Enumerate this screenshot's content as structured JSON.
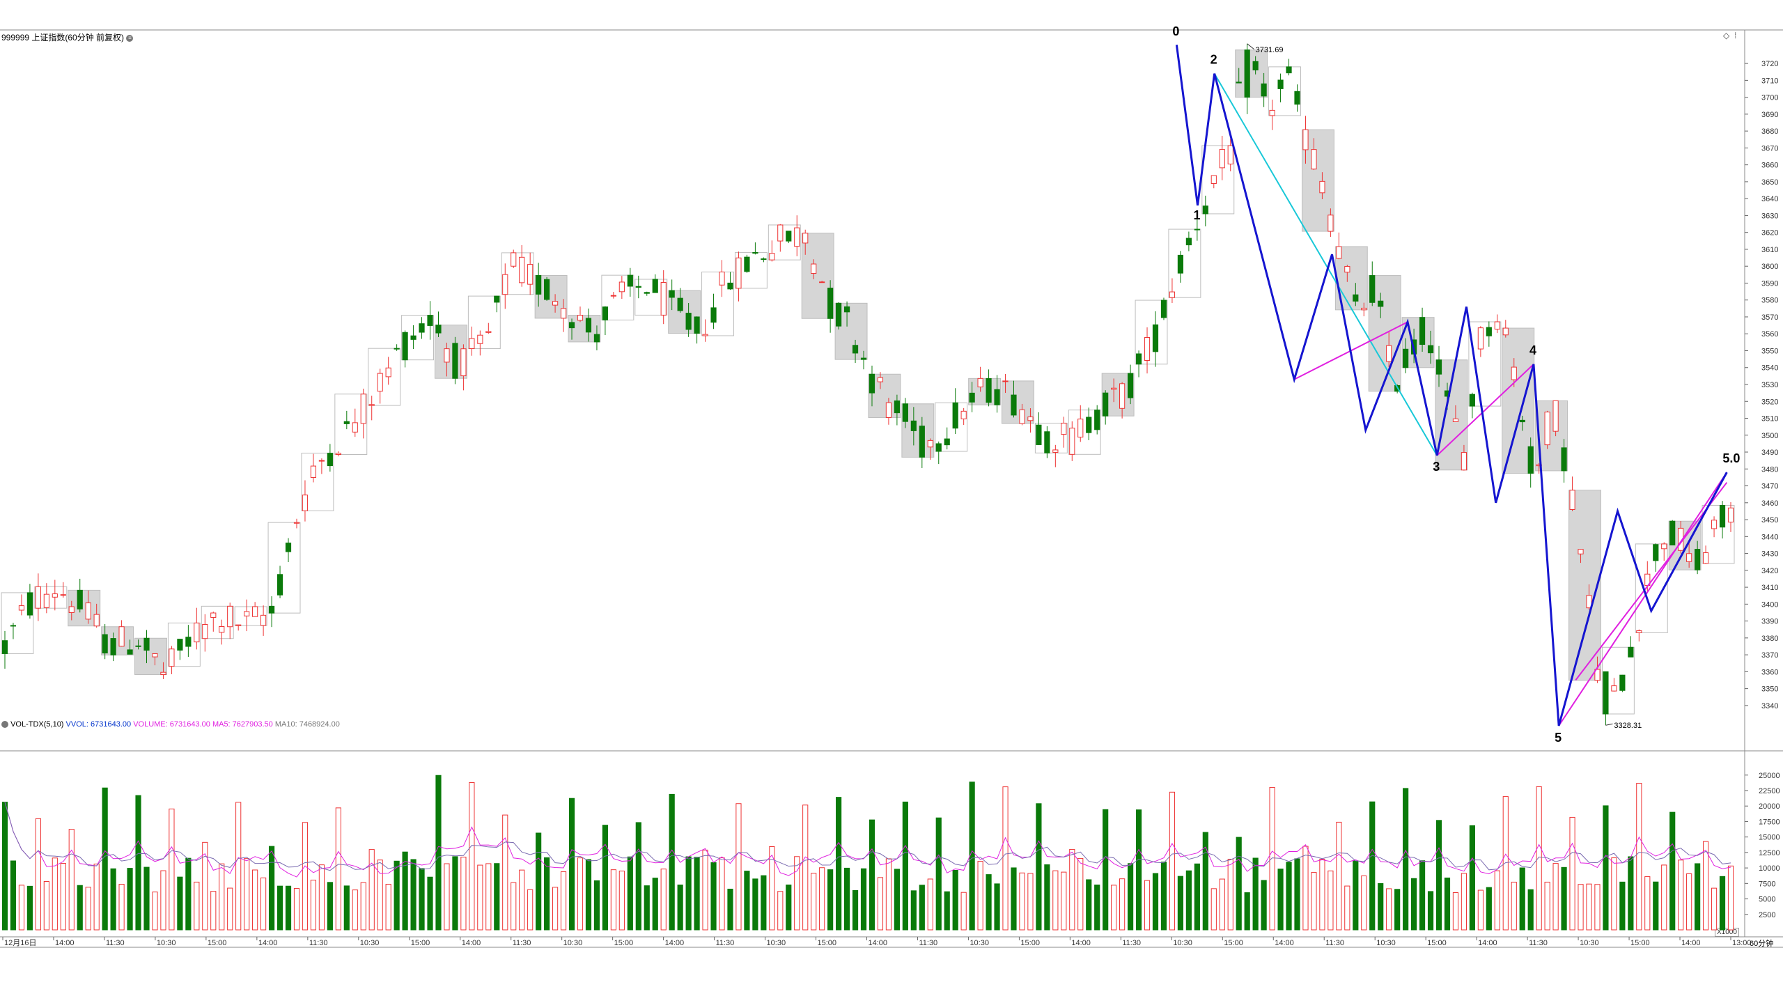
{
  "header": {
    "title": "999999 上证指数(60分钟 前复权)",
    "menu_icon": "circle-menu-icon",
    "right_icons": [
      "diamond-icon",
      "dots-icon"
    ]
  },
  "indicator": {
    "name": "VOL-TDX(5,10)",
    "vvol_label": "VVOL: 6731643.00",
    "volume_label": "VOLUME: 6731643.00",
    "ma5_label": "MA5: 7627903.50",
    "ma10_label": "MA10: 7468924.00"
  },
  "colors": {
    "up": "#ee3333",
    "down": "#0a7a0a",
    "blue_line": "#1515d0",
    "cyan_line": "#19c8d8",
    "magenta_line": "#e020e0",
    "ma5": "#e020e0",
    "ma10": "#7a6ab0",
    "box": "#bdbdbd",
    "box_fill": "#d6d6d6"
  },
  "bottom": {
    "units_badge": "X1000",
    "period": "60分钟"
  },
  "chart_data": [
    {
      "type": "candlestick",
      "title": "999999 上证指数(60分钟 前复权)",
      "ylim": [
        3328,
        3732
      ],
      "yticks": [
        3340,
        3350,
        3360,
        3370,
        3380,
        3390,
        3400,
        3410,
        3420,
        3430,
        3440,
        3450,
        3460,
        3470,
        3480,
        3490,
        3500,
        3510,
        3520,
        3530,
        3540,
        3550,
        3560,
        3570,
        3580,
        3590,
        3600,
        3610,
        3620,
        3630,
        3640,
        3650,
        3660,
        3670,
        3680,
        3690,
        3700,
        3710,
        3720
      ],
      "count": 208,
      "anchors": [
        [
          0,
          3375
        ],
        [
          6,
          3402
        ],
        [
          12,
          3410
        ],
        [
          18,
          3395
        ],
        [
          24,
          3375
        ],
        [
          30,
          3380
        ],
        [
          36,
          3358
        ],
        [
          42,
          3380
        ],
        [
          48,
          3393
        ],
        [
          54,
          3388
        ],
        [
          60,
          3395
        ],
        [
          66,
          3455
        ],
        [
          72,
          3490
        ],
        [
          78,
          3505
        ],
        [
          84,
          3530
        ],
        [
          90,
          3555
        ],
        [
          96,
          3570
        ],
        [
          102,
          3540
        ],
        [
          108,
          3553
        ],
        [
          114,
          3600
        ],
        [
          120,
          3590
        ],
        [
          126,
          3578
        ],
        [
          132,
          3560
        ],
        [
          138,
          3580
        ],
        [
          144,
          3590
        ],
        [
          150,
          3575
        ],
        [
          156,
          3560
        ],
        [
          162,
          3590
        ],
        [
          168,
          3605
        ],
        [
          174,
          3615
        ],
        [
          180,
          3620
        ],
        [
          186,
          3575
        ],
        [
          190,
          3565
        ],
        [
          194,
          3540
        ],
        [
          198,
          3520
        ],
        [
          202,
          3510
        ],
        [
          206,
          3495
        ],
        [
          210,
          3500
        ],
        [
          216,
          3517
        ],
        [
          222,
          3530
        ],
        [
          228,
          3520
        ],
        [
          234,
          3500
        ],
        [
          240,
          3498
        ],
        [
          246,
          3515
        ],
        [
          252,
          3525
        ],
        [
          258,
          3555
        ],
        [
          264,
          3600
        ],
        [
          270,
          3640
        ],
        [
          276,
          3670
        ],
        [
          279,
          3730
        ],
        [
          284,
          3690
        ],
        [
          288,
          3715
        ],
        [
          292,
          3680
        ],
        [
          296,
          3650
        ],
        [
          300,
          3610
        ],
        [
          304,
          3570
        ],
        [
          308,
          3590
        ],
        [
          312,
          3530
        ],
        [
          316,
          3550
        ],
        [
          320,
          3565
        ],
        [
          324,
          3520
        ],
        [
          328,
          3490
        ],
        [
          332,
          3560
        ],
        [
          336,
          3575
        ],
        [
          340,
          3530
        ],
        [
          344,
          3470
        ],
        [
          348,
          3520
        ],
        [
          352,
          3470
        ],
        [
          356,
          3400
        ],
        [
          360,
          3330
        ],
        [
          364,
          3360
        ],
        [
          368,
          3400
        ],
        [
          372,
          3440
        ],
        [
          376,
          3440
        ],
        [
          380,
          3420
        ],
        [
          384,
          3440
        ],
        [
          388,
          3455
        ]
      ],
      "extremes": [
        {
          "label": "3731.69",
          "value": 3731.69
        },
        {
          "label": "3328.31",
          "value": 3328.31
        }
      ],
      "wave_labels": [
        {
          "label": "0",
          "value": 3731.69
        },
        {
          "label": "1",
          "value": 3636
        },
        {
          "label": "2",
          "value": 3714
        },
        {
          "label": "3",
          "value": 3488
        },
        {
          "label": "4",
          "value": 3542
        },
        {
          "label": "5",
          "value": 3328.31
        },
        {
          "label": "5.0",
          "value": 3478
        }
      ],
      "x_labels": [
        "12月16日",
        "14:00",
        "11:30",
        "10:30",
        "15:00",
        "14:00",
        "11:30",
        "10:30",
        "15:00",
        "14:00",
        "11:30",
        "10:30",
        "15:00",
        "14:00",
        "11:30",
        "10:30",
        "15:00",
        "14:00",
        "11:30",
        "10:30",
        "15:00",
        "14:00",
        "11:30",
        "10:30",
        "15:00",
        "14:00",
        "11:30",
        "10:30",
        "15:00",
        "14:00",
        "11:30",
        "10:30",
        "15:00",
        "14:00",
        "13:00"
      ]
    },
    {
      "type": "bar",
      "title": "VOL-TDX(5,10)",
      "units": "X1000",
      "ylim": [
        0,
        27000
      ],
      "yticks": [
        2500,
        5000,
        7500,
        10000,
        12500,
        15000,
        17500,
        20000,
        22500,
        25000
      ],
      "series": [
        {
          "name": "VOLUME",
          "note": "hourly volume bars, red = up, green = down"
        },
        {
          "name": "MA5",
          "color": "#e020e0"
        },
        {
          "name": "MA10",
          "color": "#7a6ab0"
        }
      ]
    }
  ]
}
